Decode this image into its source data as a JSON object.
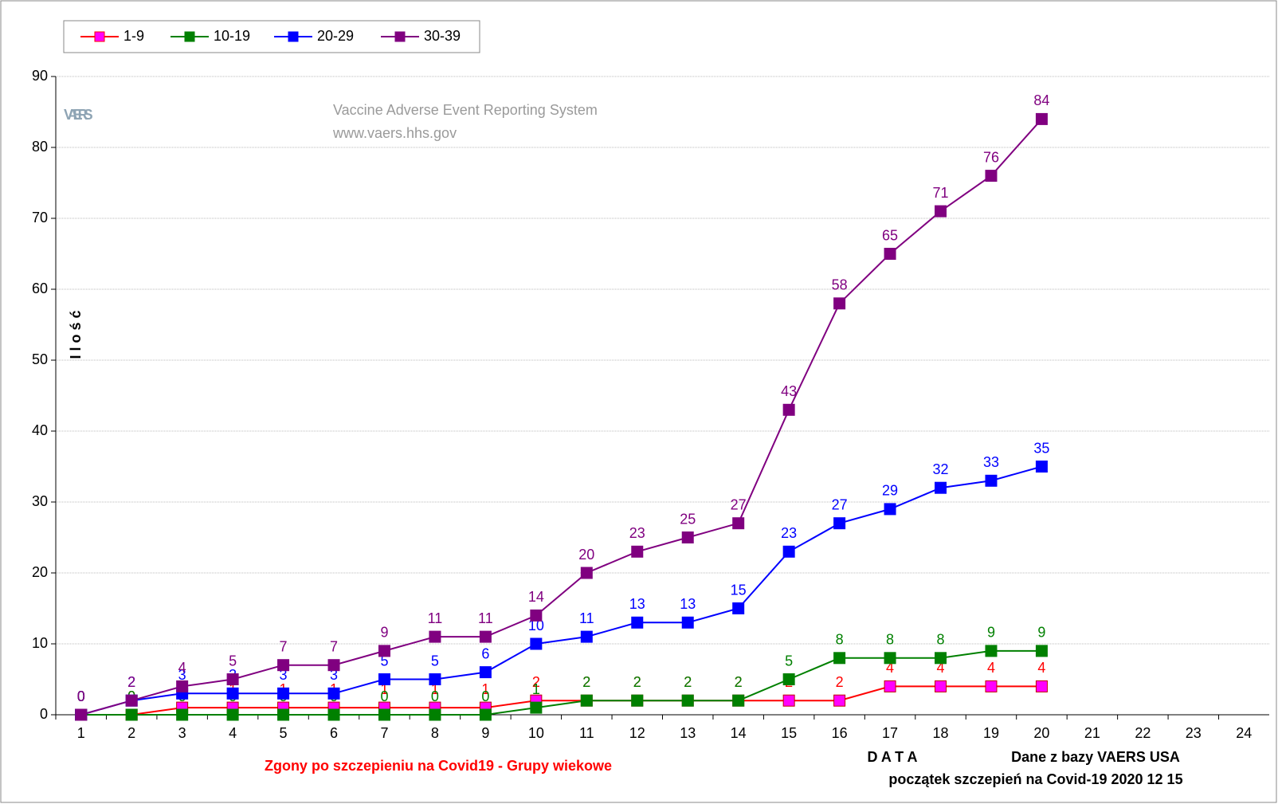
{
  "chart_data": {
    "type": "line",
    "title": "Zgony po szczepieniu na Covid19  - Grupy wiekowe",
    "y_label": "I l o ś ć",
    "x_label": "D A T A",
    "annotations": [
      "Dane z bazy VAERS  USA",
      "początek szczepień na Covid-19   2020 12 15"
    ],
    "watermark": {
      "logo": "VAERS",
      "name": "Vaccine Adverse Event Reporting System",
      "url": "www.vaers.hhs.gov"
    },
    "categories": [
      "1",
      "2",
      "3",
      "4",
      "5",
      "6",
      "7",
      "8",
      "9",
      "10",
      "11",
      "12",
      "13",
      "14",
      "15",
      "16",
      "17",
      "18",
      "19",
      "20",
      "21",
      "22",
      "23",
      "24"
    ],
    "series": [
      {
        "name": "1-9",
        "color": "#ff0000",
        "marker_color": "#ff00ff",
        "values": [
          0,
          0,
          1,
          1,
          1,
          1,
          1,
          1,
          1,
          2,
          2,
          2,
          2,
          2,
          2,
          2,
          4,
          4,
          4,
          4,
          null,
          null,
          null,
          null
        ]
      },
      {
        "name": "10-19",
        "color": "#008000",
        "marker_color": "#008000",
        "values": [
          0,
          0,
          0,
          0,
          0,
          0,
          0,
          0,
          0,
          1,
          2,
          2,
          2,
          2,
          5,
          8,
          8,
          8,
          9,
          9,
          null,
          null,
          null,
          null
        ]
      },
      {
        "name": "20-29",
        "color": "#0000ff",
        "marker_color": "#0000ff",
        "values": [
          0,
          2,
          3,
          3,
          3,
          3,
          5,
          5,
          6,
          10,
          11,
          13,
          13,
          15,
          23,
          27,
          29,
          32,
          33,
          35,
          null,
          null,
          null,
          null
        ]
      },
      {
        "name": "30-39",
        "color": "#800080",
        "marker_color": "#800080",
        "values": [
          0,
          2,
          4,
          5,
          7,
          7,
          9,
          11,
          11,
          14,
          20,
          23,
          25,
          27,
          43,
          58,
          65,
          71,
          76,
          84,
          null,
          null,
          null,
          null
        ]
      }
    ],
    "ylim": [
      0,
      90
    ],
    "yticks": [
      0,
      10,
      20,
      30,
      40,
      50,
      60,
      70,
      80,
      90
    ],
    "grid": true,
    "legend": "top-left"
  }
}
